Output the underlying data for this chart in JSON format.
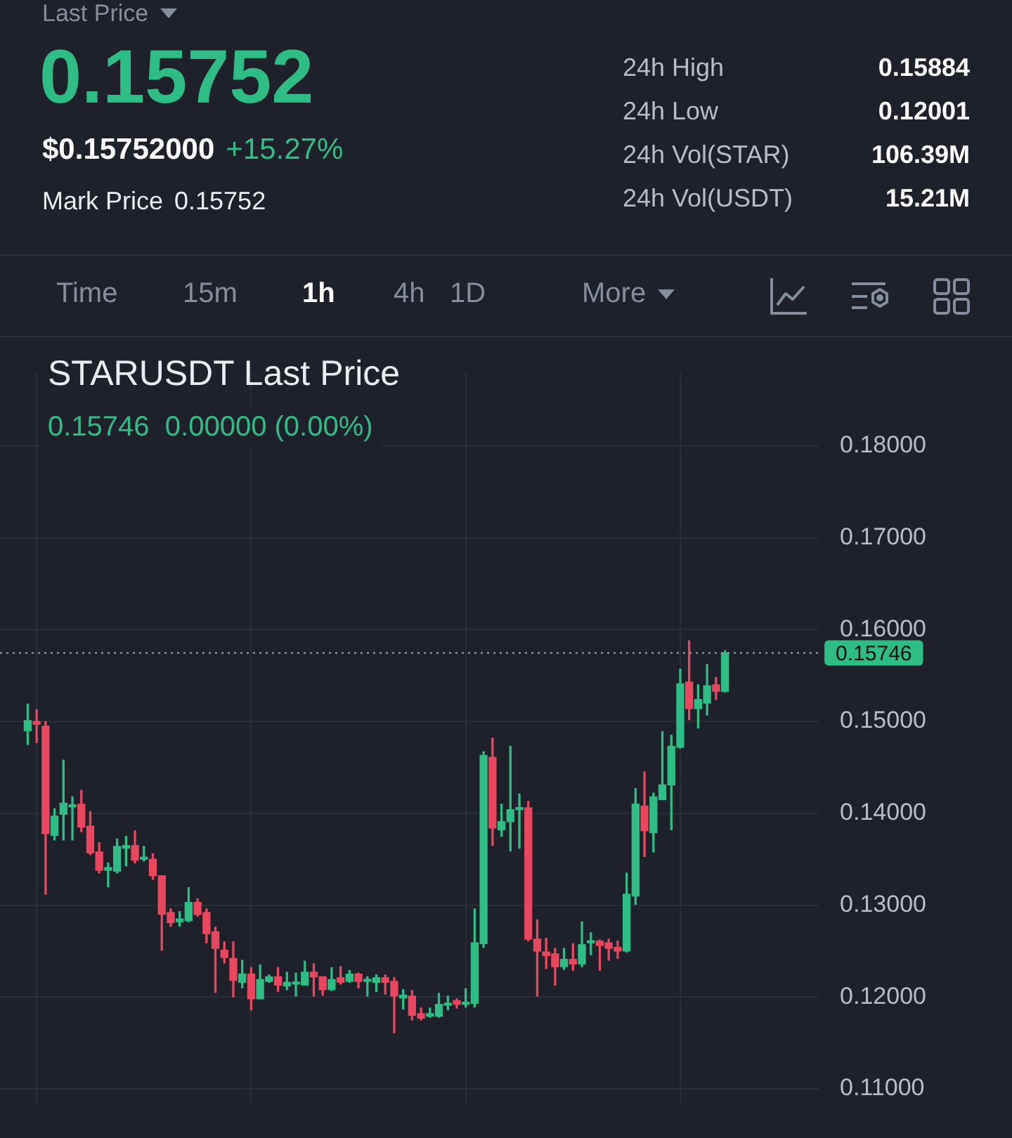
{
  "chart_data": {
    "type": "candlestick",
    "title": "STARUSDT Last Price",
    "subtitle": "0.15746  0.00000 (0.00%)",
    "annotations": [
      "Last Price",
      "0.15752",
      "$0.15752000",
      "+15.27%",
      "Mark Price",
      "0.15752",
      "24h High",
      "0.15884",
      "24h Low",
      "0.12001",
      "24h Vol(STAR)",
      "106.39M",
      "24h Vol(USDT)",
      "15.21M",
      "Time",
      "15m",
      "1h",
      "4h",
      "1D",
      "More"
    ],
    "categories": [
      null,
      null,
      null,
      null,
      null,
      null,
      null,
      null,
      null,
      null,
      null,
      null,
      null,
      null,
      null,
      null,
      null,
      null,
      null,
      null,
      null,
      null,
      null,
      null,
      null,
      null,
      null,
      null,
      null,
      null,
      null,
      null,
      null,
      null,
      null,
      null,
      null,
      null,
      null,
      null,
      null,
      null,
      null,
      null,
      null,
      null,
      null,
      null,
      null,
      null,
      null,
      null,
      null,
      null,
      null,
      null,
      null,
      null,
      null,
      null,
      null,
      null,
      null,
      null,
      null,
      null,
      null,
      null,
      null,
      null,
      null,
      null,
      null,
      null,
      null,
      null,
      null,
      null,
      null
    ],
    "ohlc": [
      [
        0.149,
        0.1519,
        0.1475,
        0.1501
      ],
      [
        0.15,
        0.1513,
        0.1477,
        0.1497
      ],
      [
        0.1495,
        0.15,
        0.1312,
        0.1378
      ],
      [
        0.1376,
        0.1405,
        0.1371,
        0.1397
      ],
      [
        0.1399,
        0.1458,
        0.1371,
        0.1411
      ],
      [
        0.1407,
        0.1418,
        0.1371,
        0.1409
      ],
      [
        0.141,
        0.1425,
        0.138,
        0.1385
      ],
      [
        0.1386,
        0.1402,
        0.1355,
        0.1357
      ],
      [
        0.1358,
        0.1368,
        0.1335,
        0.1338
      ],
      [
        0.1338,
        0.1346,
        0.132,
        0.1341
      ],
      [
        0.1337,
        0.1372,
        0.1335,
        0.1364
      ],
      [
        0.1362,
        0.1375,
        0.1343,
        0.1365
      ],
      [
        0.1365,
        0.1381,
        0.1346,
        0.1349
      ],
      [
        0.135,
        0.1364,
        0.1348,
        0.1351
      ],
      [
        0.135,
        0.1356,
        0.1328,
        0.1332
      ],
      [
        0.1332,
        0.1332,
        0.1251,
        0.129
      ],
      [
        0.1292,
        0.1296,
        0.1277,
        0.1281
      ],
      [
        0.1282,
        0.1293,
        0.1277,
        0.1285
      ],
      [
        0.1283,
        0.1319,
        0.1282,
        0.1303
      ],
      [
        0.1303,
        0.1307,
        0.1288,
        0.129
      ],
      [
        0.1292,
        0.1296,
        0.1259,
        0.1269
      ],
      [
        0.1271,
        0.1276,
        0.1205,
        0.1253
      ],
      [
        0.1251,
        0.126,
        0.1237,
        0.1243
      ],
      [
        0.1242,
        0.126,
        0.12,
        0.1218
      ],
      [
        0.1216,
        0.124,
        0.121,
        0.1225
      ],
      [
        0.1225,
        0.1232,
        0.1186,
        0.1198
      ],
      [
        0.1198,
        0.1235,
        0.1198,
        0.1219
      ],
      [
        0.1217,
        0.1224,
        0.1216,
        0.1222
      ],
      [
        0.1222,
        0.1232,
        0.1206,
        0.1213
      ],
      [
        0.1212,
        0.1227,
        0.1208,
        0.1216
      ],
      [
        0.1214,
        0.1226,
        0.1201,
        0.1216
      ],
      [
        0.1213,
        0.1239,
        0.1213,
        0.1227
      ],
      [
        0.1227,
        0.1236,
        0.1201,
        0.1222
      ],
      [
        0.1222,
        0.1222,
        0.1202,
        0.1208
      ],
      [
        0.1208,
        0.1232,
        0.1207,
        0.1219
      ],
      [
        0.1221,
        0.1233,
        0.1214,
        0.1216
      ],
      [
        0.1217,
        0.1229,
        0.1216,
        0.1225
      ],
      [
        0.1225,
        0.1226,
        0.121,
        0.1217
      ],
      [
        0.1217,
        0.1222,
        0.1201,
        0.1218
      ],
      [
        0.1216,
        0.1224,
        0.1206,
        0.1221
      ],
      [
        0.1221,
        0.1224,
        0.1203,
        0.1216
      ],
      [
        0.1217,
        0.1221,
        0.1161,
        0.1201
      ],
      [
        0.1199,
        0.1208,
        0.1187,
        0.1202
      ],
      [
        0.1201,
        0.1207,
        0.1175,
        0.118
      ],
      [
        0.1182,
        0.1188,
        0.1175,
        0.1177
      ],
      [
        0.1179,
        0.1188,
        0.1178,
        0.1182
      ],
      [
        0.1179,
        0.1204,
        0.1178,
        0.1192
      ],
      [
        0.1191,
        0.1201,
        0.1186,
        0.1193
      ],
      [
        0.1196,
        0.1198,
        0.1188,
        0.1192
      ],
      [
        0.1192,
        0.1209,
        0.1189,
        0.1193
      ],
      [
        0.1193,
        0.1296,
        0.1189,
        0.1259
      ],
      [
        0.1258,
        0.1467,
        0.1254,
        0.1463
      ],
      [
        0.1461,
        0.1482,
        0.1365,
        0.1384
      ],
      [
        0.1382,
        0.141,
        0.1375,
        0.1391
      ],
      [
        0.1391,
        0.1473,
        0.1359,
        0.1404
      ],
      [
        0.1404,
        0.1421,
        0.1362,
        0.1405
      ],
      [
        0.1406,
        0.1413,
        0.1261,
        0.1263
      ],
      [
        0.1263,
        0.1284,
        0.1201,
        0.125
      ],
      [
        0.1249,
        0.1264,
        0.1231,
        0.1245
      ],
      [
        0.1247,
        0.1253,
        0.1213,
        0.1233
      ],
      [
        0.1233,
        0.1253,
        0.123,
        0.1241
      ],
      [
        0.1241,
        0.1258,
        0.1229,
        0.1236
      ],
      [
        0.1236,
        0.1282,
        0.1233,
        0.1257
      ],
      [
        0.1259,
        0.127,
        0.1246,
        0.126
      ],
      [
        0.1261,
        0.1262,
        0.1229,
        0.1256
      ],
      [
        0.1259,
        0.1263,
        0.124,
        0.1253
      ],
      [
        0.1254,
        0.1261,
        0.1242,
        0.125
      ],
      [
        0.125,
        0.1335,
        0.1249,
        0.1312
      ],
      [
        0.131,
        0.1427,
        0.1301,
        0.141
      ],
      [
        0.1408,
        0.1445,
        0.1353,
        0.1381
      ],
      [
        0.1379,
        0.1422,
        0.1358,
        0.1418
      ],
      [
        0.1415,
        0.1489,
        0.1415,
        0.1431
      ],
      [
        0.1431,
        0.1485,
        0.1382,
        0.1473
      ],
      [
        0.1472,
        0.1557,
        0.1471,
        0.1541
      ],
      [
        0.1543,
        0.1588,
        0.1502,
        0.1514
      ],
      [
        0.1514,
        0.154,
        0.1493,
        0.1524
      ],
      [
        0.152,
        0.1562,
        0.1507,
        0.1539
      ],
      [
        0.154,
        0.1548,
        0.1524,
        0.1533
      ],
      [
        0.1533,
        0.1577,
        0.1532,
        0.15746
      ]
    ],
    "colors": [
      "#2ebd85",
      "#e8475f",
      "#e8475f",
      "#2ebd85",
      "#2ebd85",
      "#2ebd85",
      "#e8475f",
      "#e8475f",
      "#e8475f",
      "#2ebd85",
      "#2ebd85",
      "#2ebd85",
      "#e8475f",
      "#2ebd85",
      "#e8475f",
      "#e8475f",
      "#e8475f",
      "#2ebd85",
      "#2ebd85",
      "#e8475f",
      "#e8475f",
      "#e8475f",
      "#e8475f",
      "#e8475f",
      "#2ebd85",
      "#e8475f",
      "#2ebd85",
      "#2ebd85",
      "#e8475f",
      "#2ebd85",
      "#2ebd85",
      "#2ebd85",
      "#e8475f",
      "#e8475f",
      "#2ebd85",
      "#e8475f",
      "#2ebd85",
      "#e8475f",
      "#2ebd85",
      "#2ebd85",
      "#e8475f",
      "#e8475f",
      "#2ebd85",
      "#e8475f",
      "#e8475f",
      "#2ebd85",
      "#2ebd85",
      "#2ebd85",
      "#e8475f",
      "#2ebd85",
      "#2ebd85",
      "#2ebd85",
      "#e8475f",
      "#2ebd85",
      "#2ebd85",
      "#2ebd85",
      "#e8475f",
      "#e8475f",
      "#e8475f",
      "#e8475f",
      "#2ebd85",
      "#e8475f",
      "#2ebd85",
      "#2ebd85",
      "#e8475f",
      "#e8475f",
      "#e8475f",
      "#2ebd85",
      "#2ebd85",
      "#e8475f",
      "#2ebd85",
      "#2ebd85",
      "#2ebd85",
      "#2ebd85",
      "#e8475f",
      "#2ebd85",
      "#2ebd85",
      "#e8475f",
      "#2ebd85"
    ],
    "ylim": [
      0.1085,
      0.188
    ],
    "yticks": [
      {
        "value": 0.11,
        "label": "0.11000"
      },
      {
        "value": 0.12,
        "label": "0.12000"
      },
      {
        "value": 0.13,
        "label": "0.13000"
      },
      {
        "value": 0.14,
        "label": "0.14000"
      },
      {
        "value": 0.15,
        "label": "0.15000"
      },
      {
        "value": 0.16,
        "label": "0.16000"
      },
      {
        "value": 0.17,
        "label": "0.17000"
      },
      {
        "value": 0.18,
        "label": "0.18000"
      }
    ],
    "tick_labels": "y",
    "grid": true,
    "ref_lines": [
      {
        "axis": "y",
        "value": 0.15746,
        "label": "0.15746",
        "line_style": "dotted"
      }
    ]
  }
}
